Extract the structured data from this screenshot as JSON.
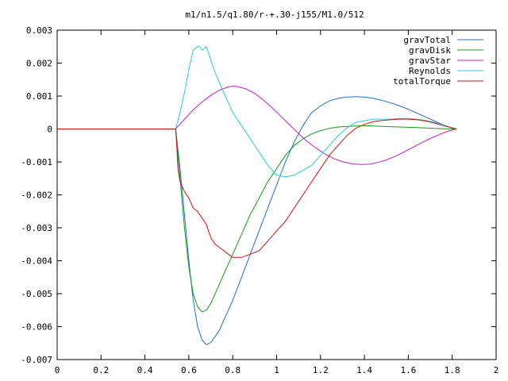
{
  "chart_data": {
    "type": "line",
    "title": "m1/n1.5/q1.80/r-+.30-j155/M1.0/512",
    "xlabel": "",
    "ylabel": "",
    "xlim": [
      0,
      2
    ],
    "ylim": [
      -0.007,
      0.003
    ],
    "grid": false,
    "legend_position": "top-right",
    "x_ticks": [
      "0",
      "0.2",
      "0.4",
      "0.6",
      "0.8",
      "1",
      "1.2",
      "1.4",
      "1.6",
      "1.8",
      "2"
    ],
    "y_ticks": [
      "0.003",
      "0.002",
      "0.001",
      "0",
      "-0.001",
      "-0.002",
      "-0.003",
      "-0.004",
      "-0.005",
      "-0.006",
      "-0.007"
    ],
    "series": [
      {
        "name": "gravTotal",
        "color": "#1f6fd1",
        "x": [
          0.54,
          0.56,
          0.58,
          0.6,
          0.62,
          0.64,
          0.66,
          0.68,
          0.7,
          0.72,
          0.74,
          0.76,
          0.78,
          0.8,
          0.84,
          0.88,
          0.92,
          0.96,
          1.0,
          1.04,
          1.08,
          1.12,
          1.16,
          1.2,
          1.24,
          1.28,
          1.32,
          1.36,
          1.4,
          1.44,
          1.48,
          1.52,
          1.56,
          1.6,
          1.64,
          1.68,
          1.72,
          1.76,
          1.8,
          1.82
        ],
        "y": [
          0.0,
          -0.0012,
          -0.0026,
          -0.004,
          -0.0052,
          -0.006,
          -0.0064,
          -0.00655,
          -0.00648,
          -0.0063,
          -0.0061,
          -0.0058,
          -0.0055,
          -0.0052,
          -0.0045,
          -0.0038,
          -0.0031,
          -0.0024,
          -0.0017,
          -0.001,
          -0.0004,
          0.0001,
          0.0005,
          0.0007,
          0.00085,
          0.00093,
          0.00097,
          0.00098,
          0.00097,
          0.00093,
          0.00087,
          0.00079,
          0.0007,
          0.0006,
          0.00048,
          0.00036,
          0.00024,
          0.00012,
          3e-05,
          0.0
        ]
      },
      {
        "name": "gravDisk",
        "color": "#10a010",
        "x": [
          0.54,
          0.56,
          0.58,
          0.6,
          0.62,
          0.64,
          0.66,
          0.68,
          0.7,
          0.72,
          0.74,
          0.76,
          0.8,
          0.84,
          0.88,
          0.92,
          0.96,
          1.0,
          1.04,
          1.08,
          1.12,
          1.16,
          1.2,
          1.24,
          1.28,
          1.32,
          1.36,
          1.4,
          1.44,
          1.48,
          1.52,
          1.56,
          1.6,
          1.64,
          1.68,
          1.72,
          1.76,
          1.8,
          1.82
        ],
        "y": [
          0.0,
          -0.0015,
          -0.003,
          -0.0042,
          -0.005,
          -0.0054,
          -0.00555,
          -0.0055,
          -0.0053,
          -0.005,
          -0.0047,
          -0.0044,
          -0.0038,
          -0.0032,
          -0.0026,
          -0.0021,
          -0.0016,
          -0.0012,
          -0.0008,
          -0.0005,
          -0.0003,
          -0.00015,
          -5e-05,
          2e-05,
          6e-05,
          8e-05,
          9e-05,
          0.0001,
          9e-05,
          8e-05,
          7e-05,
          6e-05,
          5e-05,
          4e-05,
          3e-05,
          2e-05,
          1e-05,
          0.0,
          0.0
        ]
      },
      {
        "name": "gravStar",
        "color": "#c020c8",
        "x": [
          0.54,
          0.58,
          0.62,
          0.66,
          0.7,
          0.74,
          0.78,
          0.8,
          0.82,
          0.86,
          0.9,
          0.94,
          0.98,
          1.02,
          1.06,
          1.1,
          1.14,
          1.18,
          1.22,
          1.26,
          1.3,
          1.34,
          1.38,
          1.42,
          1.46,
          1.5,
          1.54,
          1.58,
          1.62,
          1.66,
          1.7,
          1.74,
          1.78,
          1.82
        ],
        "y": [
          0.0,
          0.0003,
          0.00058,
          0.00082,
          0.00102,
          0.00118,
          0.00128,
          0.0013,
          0.00129,
          0.00122,
          0.00108,
          0.00088,
          0.00064,
          0.00038,
          0.00012,
          -0.00014,
          -0.00038,
          -0.00058,
          -0.00076,
          -0.0009,
          -0.00099,
          -0.00105,
          -0.00108,
          -0.00107,
          -0.00102,
          -0.00094,
          -0.00083,
          -0.0007,
          -0.00056,
          -0.00042,
          -0.00029,
          -0.00017,
          -7e-05,
          0.0
        ]
      },
      {
        "name": "Reynolds",
        "color": "#20d0d8",
        "x": [
          0.54,
          0.56,
          0.58,
          0.6,
          0.62,
          0.64,
          0.65,
          0.66,
          0.68,
          0.7,
          0.72,
          0.74,
          0.76,
          0.78,
          0.8,
          0.84,
          0.88,
          0.92,
          0.96,
          1.0,
          1.04,
          1.08,
          1.12,
          1.16,
          1.2,
          1.24,
          1.28,
          1.32,
          1.36,
          1.4,
          1.44,
          1.48,
          1.52,
          1.56,
          1.6,
          1.64,
          1.68,
          1.72,
          1.76,
          1.8,
          1.82
        ],
        "y": [
          0.0,
          0.0005,
          0.0011,
          0.0018,
          0.0024,
          0.0025,
          0.0025,
          0.0024,
          0.0025,
          0.0021,
          0.0017,
          0.0014,
          0.0011,
          0.0008,
          0.0005,
          0.0001,
          -0.0003,
          -0.0007,
          -0.0011,
          -0.0014,
          -0.00145,
          -0.0014,
          -0.00125,
          -0.0011,
          -0.0008,
          -0.0005,
          -0.0002,
          3e-05,
          0.0002,
          0.00025,
          0.0003,
          0.0003,
          0.0003,
          0.00032,
          0.00032,
          0.0003,
          0.00026,
          0.0002,
          0.00012,
          4e-05,
          0.0
        ]
      },
      {
        "name": "totalTorque",
        "color": "#d01010",
        "x": [
          0.0,
          0.54,
          0.545,
          0.55,
          0.56,
          0.58,
          0.6,
          0.62,
          0.64,
          0.66,
          0.68,
          0.7,
          0.72,
          0.74,
          0.76,
          0.78,
          0.8,
          0.84,
          0.88,
          0.92,
          0.96,
          1.0,
          1.04,
          1.08,
          1.12,
          1.16,
          1.2,
          1.24,
          1.28,
          1.32,
          1.36,
          1.4,
          1.44,
          1.48,
          1.52,
          1.56,
          1.6,
          1.64,
          1.68,
          1.72,
          1.76,
          1.8,
          1.82
        ],
        "y": [
          0.0,
          0.0,
          -0.0005,
          -0.0012,
          -0.0016,
          -0.0019,
          -0.0021,
          -0.0024,
          -0.0025,
          -0.0027,
          -0.0029,
          -0.0033,
          -0.0035,
          -0.0036,
          -0.0037,
          -0.0038,
          -0.0039,
          -0.0039,
          -0.0038,
          -0.0037,
          -0.0034,
          -0.0031,
          -0.0028,
          -0.0024,
          -0.002,
          -0.0016,
          -0.0012,
          -0.0008,
          -0.0005,
          -0.0002,
          2e-05,
          0.00014,
          0.00022,
          0.00026,
          0.00028,
          0.0003,
          0.0003,
          0.00028,
          0.00024,
          0.00018,
          0.0001,
          3e-05,
          0.0
        ]
      }
    ]
  }
}
